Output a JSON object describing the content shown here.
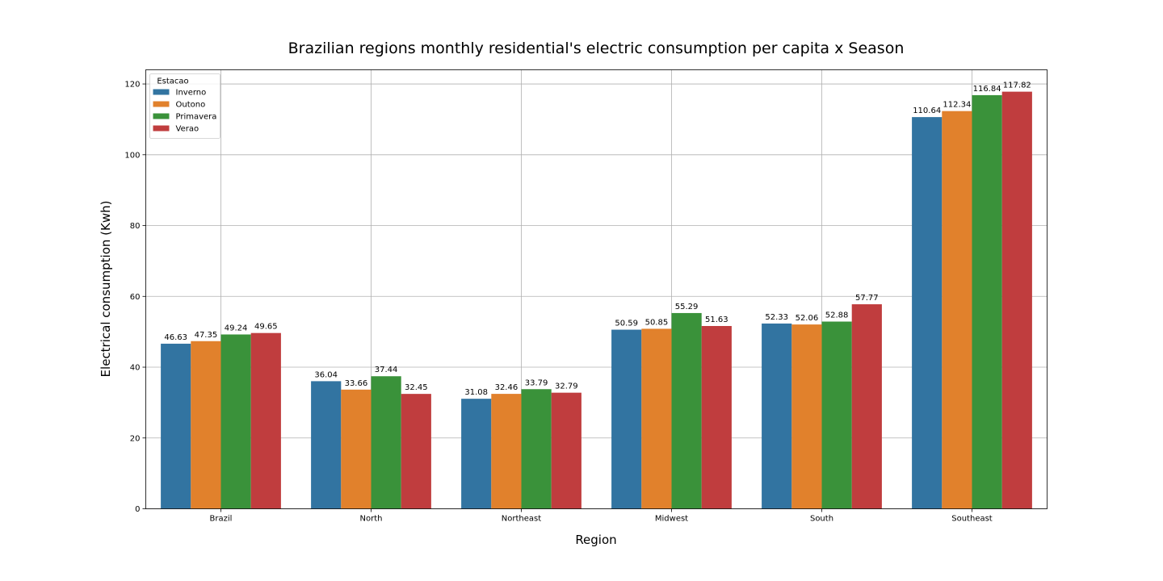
{
  "chart_data": {
    "type": "bar",
    "title": "Brazilian regions monthly residential's electric consumption per capita x Season",
    "xlabel": "Region",
    "ylabel": "Electrical consumption (Kwh)",
    "categories": [
      "Brazil",
      "North",
      "Northeast",
      "Midwest",
      "South",
      "Southeast"
    ],
    "series": [
      {
        "name": "Inverno",
        "color": "#3274a1",
        "values": [
          46.63,
          36.04,
          31.08,
          50.59,
          52.33,
          110.64
        ]
      },
      {
        "name": "Outono",
        "color": "#e1812c",
        "values": [
          47.35,
          33.66,
          32.46,
          50.85,
          52.06,
          112.34
        ]
      },
      {
        "name": "Primavera",
        "color": "#3a923a",
        "values": [
          49.24,
          37.44,
          33.79,
          55.29,
          52.88,
          116.84
        ]
      },
      {
        "name": "Verao",
        "color": "#c03d3e",
        "values": [
          49.65,
          32.45,
          32.79,
          51.63,
          57.77,
          117.82
        ]
      }
    ],
    "ylim": [
      0,
      124
    ],
    "yticks": [
      0,
      20,
      40,
      60,
      80,
      100,
      120
    ],
    "grid": true,
    "legend": {
      "title": "Estacao",
      "placement": "top-left"
    }
  }
}
